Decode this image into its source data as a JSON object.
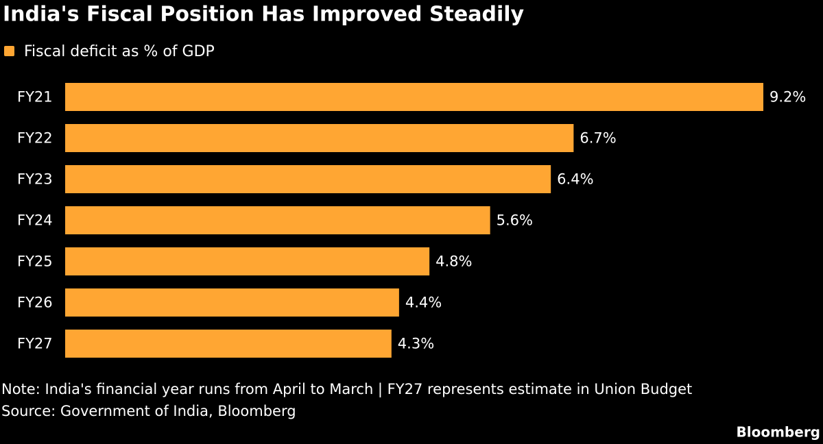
{
  "chart_data": {
    "type": "bar",
    "orientation": "horizontal",
    "title": "India's Fiscal Position Has Improved Steadily",
    "categories": [
      "FY21",
      "FY22",
      "FY23",
      "FY24",
      "FY25",
      "FY26",
      "FY27"
    ],
    "series": [
      {
        "name": "Fiscal deficit as % of GDP",
        "color": "#ffa633",
        "values": [
          9.2,
          6.7,
          6.4,
          5.6,
          4.8,
          4.4,
          4.3
        ],
        "value_labels": [
          "9.2%",
          "6.7%",
          "6.4%",
          "5.6%",
          "4.8%",
          "4.4%",
          "4.3%"
        ]
      }
    ],
    "note": "Note: India's financial year runs from April to March | FY27 represents estimate in Union Budget",
    "source": "Source: Government of India, Bloomberg",
    "credit": "Bloomberg"
  }
}
